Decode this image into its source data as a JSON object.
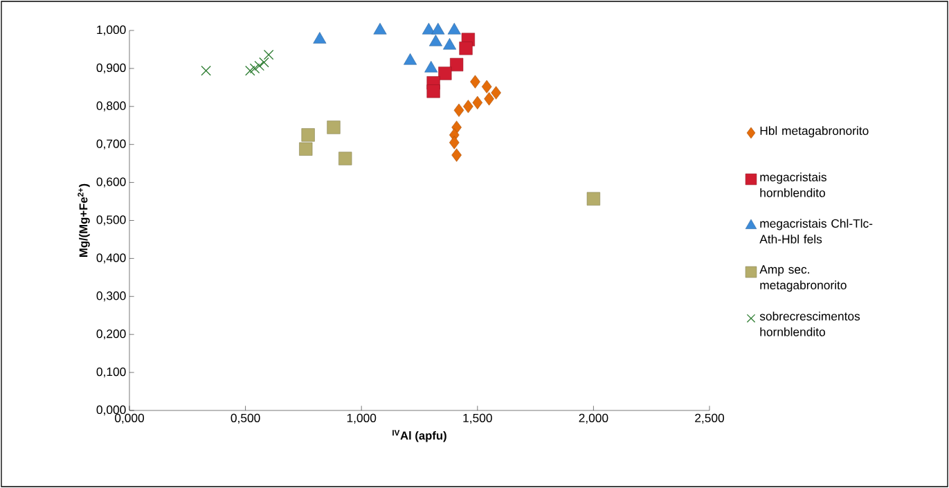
{
  "chart_data": {
    "type": "scatter",
    "xlabel": "$^{IV}$Al (apfu)",
    "ylabel": "Mg/(Mg+Fe$^{2+}$)",
    "xlim": [
      0,
      2.5
    ],
    "ylim": [
      0,
      1
    ],
    "xticks": [
      {
        "value": 0,
        "label": "0,000"
      },
      {
        "value": 0.5,
        "label": "0,500"
      },
      {
        "value": 1,
        "label": "1,000"
      },
      {
        "value": 1.5,
        "label": "1,500"
      },
      {
        "value": 2,
        "label": "2,000"
      },
      {
        "value": 2.5,
        "label": "2,500"
      }
    ],
    "yticks": [
      {
        "value": 0,
        "label": "0,000"
      },
      {
        "value": 0.1,
        "label": "0,100"
      },
      {
        "value": 0.2,
        "label": "0,200"
      },
      {
        "value": 0.3,
        "label": "0,300"
      },
      {
        "value": 0.4,
        "label": "0,400"
      },
      {
        "value": 0.5,
        "label": "0,500"
      },
      {
        "value": 0.6,
        "label": "0,600"
      },
      {
        "value": 0.7,
        "label": "0,700"
      },
      {
        "value": 0.8,
        "label": "0,800"
      },
      {
        "value": 0.9,
        "label": "0,900"
      },
      {
        "value": 1,
        "label": "1,000"
      }
    ],
    "grid": false,
    "legend": "right",
    "series": [
      {
        "name": "Hbl metagabronorito",
        "color": "#e46c0a",
        "marker": "diamond",
        "x": [
          1.49,
          1.54,
          1.58,
          1.55,
          1.5,
          1.46,
          1.42,
          1.41,
          1.4,
          1.4,
          1.41
        ],
        "values": [
          0.865,
          0.852,
          0.836,
          0.82,
          0.81,
          0.8,
          0.79,
          0.745,
          0.725,
          0.705,
          0.672
        ]
      },
      {
        "name": "megacristais hornblendito",
        "color": "#d01c30",
        "marker": "square",
        "x": [
          1.46,
          1.45,
          1.41,
          1.36,
          1.31,
          1.31
        ],
        "values": [
          0.976,
          0.953,
          0.91,
          0.887,
          0.862,
          0.84
        ]
      },
      {
        "name": "megacristais Chl-Tlc-Ath-Hbl fels",
        "color": "#3b8ad8",
        "marker": "triangle",
        "x": [
          0.82,
          1.08,
          1.29,
          1.33,
          1.4,
          1.32,
          1.38,
          1.21,
          1.3
        ],
        "values": [
          0.976,
          1.0,
          1.0,
          1.0,
          1.0,
          0.969,
          0.96,
          0.92,
          0.9
        ]
      },
      {
        "name": "Amp sec. metagabronorito",
        "color": "#b5ad6a",
        "marker": "square",
        "x": [
          0.77,
          0.76,
          0.88,
          0.93,
          2.0
        ],
        "values": [
          0.725,
          0.688,
          0.745,
          0.663,
          0.557
        ]
      },
      {
        "name": "sobrecrescimentos hornblendito",
        "color": "#2e7d32",
        "marker": "cross",
        "x": [
          0.33,
          0.52,
          0.54,
          0.56,
          0.58,
          0.6
        ],
        "values": [
          0.894,
          0.894,
          0.9,
          0.907,
          0.916,
          0.936
        ]
      }
    ]
  }
}
